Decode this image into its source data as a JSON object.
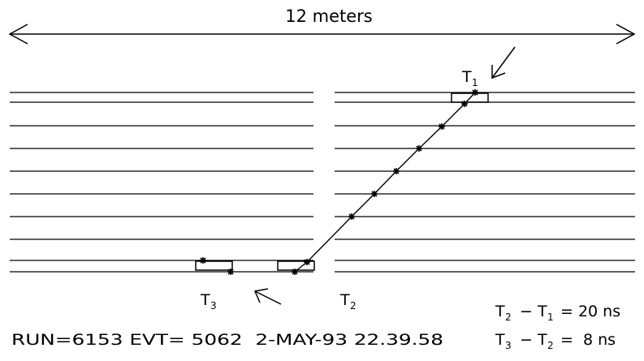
{
  "dimension": {
    "label": "12 meters"
  },
  "labels": {
    "t1": "T",
    "t1_sub": "1",
    "t2": "T",
    "t2_sub": "2",
    "t3": "T",
    "t3_sub": "3"
  },
  "event_info": {
    "run_text": "RUN=6153 EVT= 5062  2-MAY-93 22.39.58"
  },
  "equations": {
    "eq1": {
      "lhs_a": "T",
      "lhs_a_sub": "2",
      "minus": "−",
      "lhs_b": "T",
      "lhs_b_sub": "1",
      "rhs": "= 20 ns"
    },
    "eq2": {
      "lhs_a": "T",
      "lhs_a_sub": "3",
      "minus": "−",
      "lhs_b": "T",
      "lhs_b_sub": "2",
      "rhs": "=  8 ns"
    }
  },
  "colors": {
    "ink": "#000000",
    "background": "#ffffff"
  }
}
